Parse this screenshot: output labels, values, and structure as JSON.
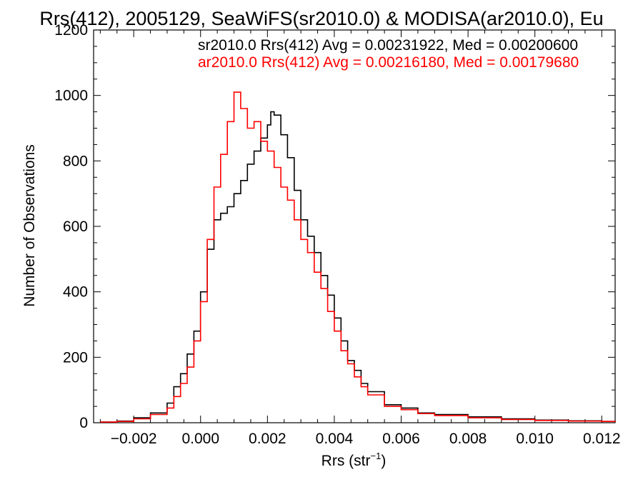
{
  "chart_data": {
    "type": "line",
    "title": "Rrs(412), 2005129, SeaWiFS(sr2010.0) & MODISA(ar2010.0), Eu",
    "xlabel": {
      "base": "Rrs (str",
      "sup": "−1",
      "close": ")"
    },
    "ylabel": "Number of Observations",
    "xlim": [
      -0.0032,
      0.0124
    ],
    "ylim": [
      0,
      1200
    ],
    "x_ticks": [
      -0.002,
      0.0,
      0.002,
      0.004,
      0.006,
      0.008,
      0.01,
      0.012
    ],
    "x_tick_labels": [
      "−0.002",
      "0.000",
      "0.002",
      "0.004",
      "0.006",
      "0.008",
      "0.010",
      "0.012"
    ],
    "y_ticks": [
      0,
      200,
      400,
      600,
      800,
      1000,
      1200
    ],
    "y_tick_labels": [
      "0",
      "200",
      "400",
      "600",
      "800",
      "1000",
      "1200"
    ],
    "grid": false,
    "legend_position": "top-right",
    "series": [
      {
        "name": "sr2010.0 Rrs(412) Avg = 0.00231922, Med = 0.00200600",
        "color": "#000000",
        "x": [
          -0.003,
          -0.0025,
          -0.002,
          -0.0015,
          -0.001,
          -0.0008,
          -0.0006,
          -0.0004,
          -0.0002,
          0.0,
          0.0002,
          0.0004,
          0.0006,
          0.0008,
          0.001,
          0.0012,
          0.0014,
          0.0016,
          0.0018,
          0.002,
          0.0021,
          0.0022,
          0.0024,
          0.0026,
          0.0028,
          0.003,
          0.0032,
          0.0034,
          0.0036,
          0.0038,
          0.004,
          0.0042,
          0.0044,
          0.0046,
          0.0048,
          0.005,
          0.0055,
          0.006,
          0.0065,
          0.007,
          0.008,
          0.009,
          0.01,
          0.011,
          0.012,
          0.0124
        ],
        "y": [
          2,
          5,
          15,
          30,
          60,
          110,
          150,
          210,
          280,
          400,
          530,
          620,
          640,
          660,
          700,
          740,
          790,
          830,
          870,
          910,
          950,
          940,
          880,
          810,
          710,
          620,
          570,
          520,
          450,
          390,
          320,
          250,
          190,
          160,
          120,
          95,
          55,
          45,
          30,
          25,
          18,
          12,
          8,
          6,
          4,
          3
        ]
      },
      {
        "name": "ar2010.0 Rrs(412) Avg = 0.00216180, Med = 0.00179680",
        "color": "#ff0000",
        "x": [
          -0.003,
          -0.0025,
          -0.002,
          -0.0015,
          -0.001,
          -0.0008,
          -0.0006,
          -0.0004,
          -0.0002,
          0.0,
          0.0002,
          0.0004,
          0.0006,
          0.0008,
          0.001,
          0.0012,
          0.0014,
          0.0016,
          0.0018,
          0.002,
          0.0022,
          0.0024,
          0.0026,
          0.0028,
          0.003,
          0.0032,
          0.0034,
          0.0036,
          0.0038,
          0.004,
          0.0042,
          0.0044,
          0.0046,
          0.0048,
          0.005,
          0.0055,
          0.006,
          0.0065,
          0.007,
          0.008,
          0.009,
          0.01,
          0.011,
          0.012,
          0.0124
        ],
        "y": [
          2,
          4,
          12,
          25,
          45,
          80,
          120,
          170,
          250,
          370,
          560,
          720,
          820,
          920,
          1010,
          960,
          900,
          920,
          860,
          830,
          780,
          720,
          680,
          620,
          560,
          520,
          460,
          410,
          340,
          280,
          220,
          180,
          140,
          110,
          85,
          50,
          40,
          28,
          22,
          15,
          10,
          7,
          5,
          4,
          3
        ]
      }
    ]
  }
}
